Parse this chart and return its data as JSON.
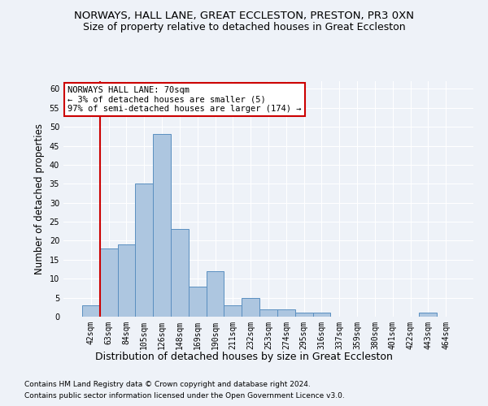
{
  "title1": "NORWAYS, HALL LANE, GREAT ECCLESTON, PRESTON, PR3 0XN",
  "title2": "Size of property relative to detached houses in Great Eccleston",
  "xlabel": "Distribution of detached houses by size in Great Eccleston",
  "ylabel": "Number of detached properties",
  "footer1": "Contains HM Land Registry data © Crown copyright and database right 2024.",
  "footer2": "Contains public sector information licensed under the Open Government Licence v3.0.",
  "bar_labels": [
    "42sqm",
    "63sqm",
    "84sqm",
    "105sqm",
    "126sqm",
    "148sqm",
    "169sqm",
    "190sqm",
    "211sqm",
    "232sqm",
    "253sqm",
    "274sqm",
    "295sqm",
    "316sqm",
    "337sqm",
    "359sqm",
    "380sqm",
    "401sqm",
    "422sqm",
    "443sqm",
    "464sqm"
  ],
  "bar_values": [
    3,
    18,
    19,
    35,
    48,
    23,
    8,
    12,
    3,
    5,
    2,
    2,
    1,
    1,
    0,
    0,
    0,
    0,
    0,
    1,
    0
  ],
  "bar_color": "#adc6e0",
  "bar_edge_color": "#5a8fc0",
  "annotation_line1": "NORWAYS HALL LANE: 70sqm",
  "annotation_line2": "← 3% of detached houses are smaller (5)",
  "annotation_line3": "97% of semi-detached houses are larger (174) →",
  "annotation_box_color": "#ffffff",
  "annotation_box_edge": "#cc0000",
  "vline_color": "#cc0000",
  "ylim": [
    0,
    62
  ],
  "yticks": [
    0,
    5,
    10,
    15,
    20,
    25,
    30,
    35,
    40,
    45,
    50,
    55,
    60
  ],
  "bg_color": "#eef2f8",
  "plot_bg_color": "#eef2f8",
  "grid_color": "#ffffff",
  "title1_fontsize": 9.5,
  "title2_fontsize": 9,
  "annotation_fontsize": 7.5,
  "xlabel_fontsize": 9,
  "ylabel_fontsize": 8.5,
  "tick_fontsize": 7,
  "footer_fontsize": 6.5
}
